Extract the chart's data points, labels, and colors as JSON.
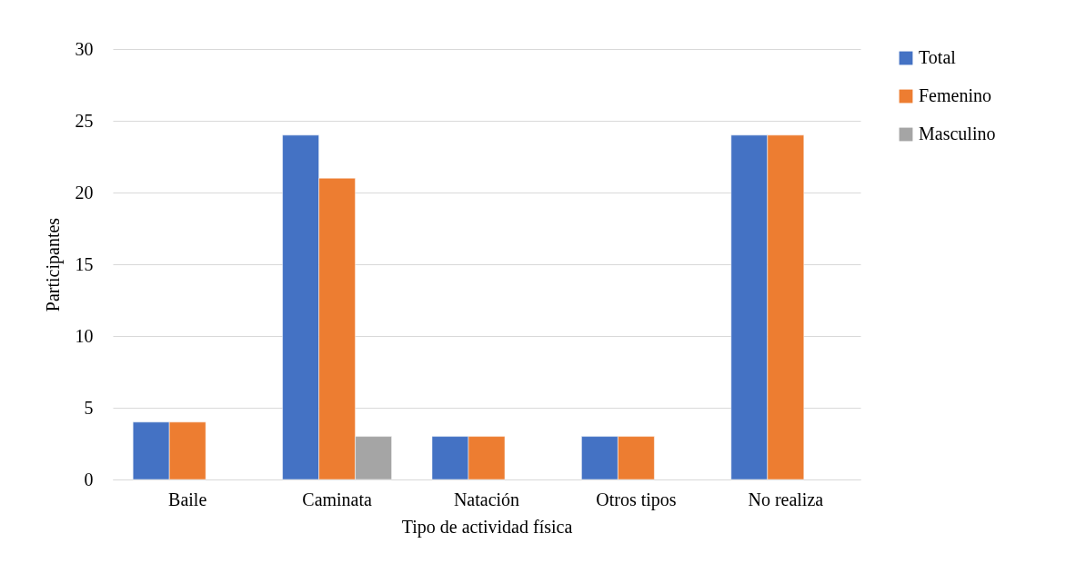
{
  "chart_data": {
    "type": "bar",
    "xlabel": "Tipo de actividad física",
    "ylabel": "Participantes",
    "categories": [
      "Baile",
      "Caminata",
      "Natación",
      "Otros tipos",
      "No realiza"
    ],
    "series": [
      {
        "name": "Total",
        "color": "#4472c4",
        "values": [
          4,
          24,
          3,
          3,
          24
        ]
      },
      {
        "name": "Femenino",
        "color": "#ed7d31",
        "values": [
          4,
          21,
          3,
          3,
          24
        ]
      },
      {
        "name": "Masculino",
        "color": "#a5a5a5",
        "values": [
          null,
          3,
          null,
          null,
          null
        ]
      }
    ],
    "ylim": [
      0,
      30
    ],
    "yticks": [
      0,
      5,
      10,
      15,
      20,
      25,
      30
    ],
    "grid": "y",
    "legend": "right"
  }
}
